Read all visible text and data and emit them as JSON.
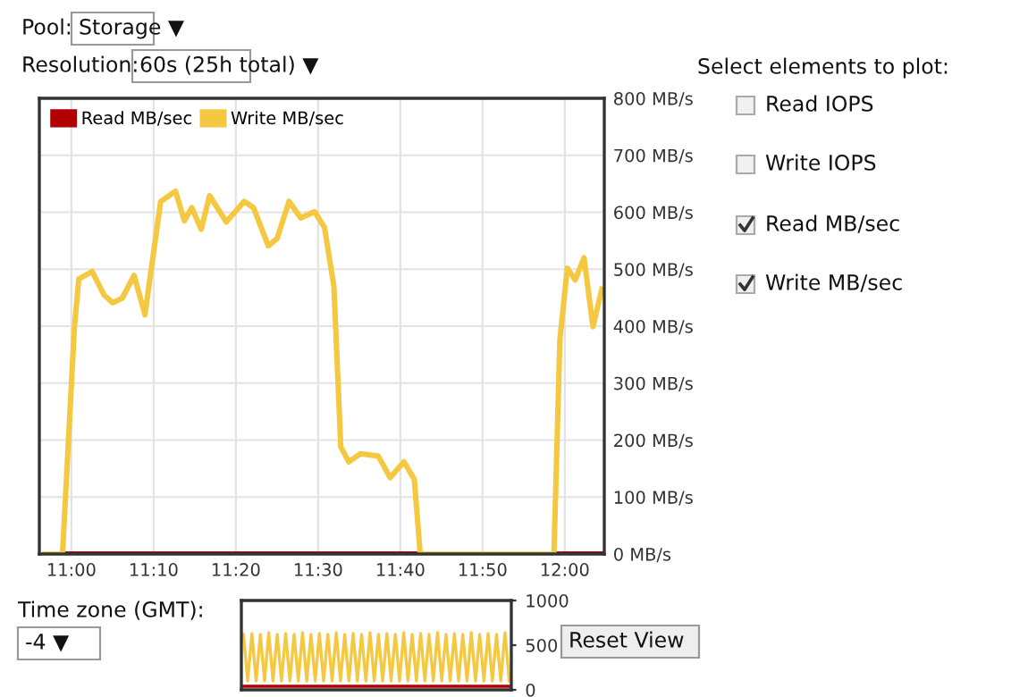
{
  "chart_data": [
    {
      "type": "line",
      "series": [
        {
          "name": "Read MB/sec",
          "color": "#b00000",
          "x": [
            10.946,
            12.075
          ],
          "values": [
            0,
            0
          ]
        },
        {
          "name": "Write MB/sec",
          "color": "#f5c842",
          "x": [
            10.946,
            10.982,
            11.006,
            11.015,
            11.042,
            11.066,
            11.084,
            11.103,
            11.127,
            11.149,
            11.181,
            11.211,
            11.229,
            11.244,
            11.263,
            11.28,
            11.314,
            11.35,
            11.369,
            11.399,
            11.417,
            11.441,
            11.465,
            11.493,
            11.513,
            11.532,
            11.546,
            11.562,
            11.586,
            11.622,
            11.646,
            11.674,
            11.695,
            11.707,
            11.978,
            11.99,
            12.005,
            12.021,
            12.039,
            12.057,
            12.075
          ],
          "values": [
            0,
            0,
            397,
            483,
            496,
            455,
            441,
            449,
            489,
            420,
            619,
            637,
            585,
            608,
            570,
            629,
            583,
            619,
            608,
            541,
            554,
            619,
            590,
            601,
            573,
            470,
            188,
            162,
            176,
            172,
            134,
            162,
            131,
            0,
            0,
            376,
            502,
            481,
            520,
            399,
            465
          ]
        }
      ],
      "xlim": [
        10.935,
        12.08
      ],
      "xticks": [
        {
          "value": 11.0,
          "label": "11:00"
        },
        {
          "value": 11.1667,
          "label": "11:10"
        },
        {
          "value": 11.3333,
          "label": "11:20"
        },
        {
          "value": 11.5,
          "label": "11:30"
        },
        {
          "value": 11.6667,
          "label": "11:40"
        },
        {
          "value": 11.8333,
          "label": "11:50"
        },
        {
          "value": 12.0,
          "label": "12:00"
        }
      ],
      "ylim": [
        0,
        800
      ],
      "yticks": [
        {
          "value": 0,
          "label": "0 MB/s"
        },
        {
          "value": 100,
          "label": "100 MB/s"
        },
        {
          "value": 200,
          "label": "200 MB/s"
        },
        {
          "value": 300,
          "label": "300 MB/s"
        },
        {
          "value": 400,
          "label": "400 MB/s"
        },
        {
          "value": 500,
          "label": "500 MB/s"
        },
        {
          "value": 600,
          "label": "600 MB/s"
        },
        {
          "value": 700,
          "label": "700 MB/s"
        },
        {
          "value": 800,
          "label": "800 MB/s"
        }
      ],
      "grid": true,
      "legend": "top left",
      "marker": "none",
      "line_style": "solid",
      "annotations": [
        "Pool:",
        "Storage ▼",
        "Resolution:",
        "60s (25h total) ▼",
        "Select elements to plot:",
        "Read IOPS",
        "Write IOPS",
        "Read MB/sec",
        "Write MB/sec",
        "Time zone (GMT):",
        "-4 ▼",
        "Reset View"
      ]
    },
    {
      "type": "line",
      "categories": [
        null,
        null,
        null,
        null,
        null,
        null,
        null,
        null,
        null,
        null,
        null,
        null,
        null,
        null,
        null,
        null,
        null,
        null,
        null,
        null,
        null,
        null,
        null,
        null,
        null,
        null,
        null,
        null,
        null,
        null,
        null,
        null,
        null,
        null,
        null,
        null,
        null,
        null,
        null,
        null,
        null,
        null,
        null,
        null,
        null,
        null,
        null,
        null,
        null,
        null,
        null,
        null,
        null,
        null,
        null,
        null,
        null,
        null,
        null,
        null,
        null,
        null,
        null,
        null
      ],
      "series": [
        {
          "color": "#f5c842",
          "values": [
            620,
            100,
            630,
            100,
            620,
            100,
            640,
            100,
            620,
            100,
            630,
            100,
            620,
            100,
            640,
            100,
            620,
            100,
            630,
            100,
            620,
            100,
            640,
            100,
            620,
            100,
            630,
            100,
            620,
            100,
            640,
            100,
            620,
            100,
            630,
            100,
            620,
            100,
            640,
            100,
            620,
            100,
            630,
            100,
            620,
            100,
            640,
            100,
            620,
            100,
            630,
            100,
            620,
            100,
            640,
            100,
            620,
            100,
            630,
            100,
            620,
            100,
            640,
            100
          ]
        },
        {
          "color": "#b00000",
          "values": [
            40,
            40,
            40,
            40,
            40,
            40,
            40,
            40,
            40,
            40,
            40,
            40,
            40,
            40,
            40,
            40,
            40,
            40,
            40,
            40,
            40,
            40,
            40,
            40,
            40,
            40,
            40,
            40,
            40,
            40,
            40,
            40,
            40,
            40,
            40,
            40,
            40,
            40,
            40,
            40,
            40,
            40,
            40,
            40,
            40,
            40,
            40,
            40,
            40,
            40,
            40,
            40,
            40,
            40,
            40,
            40,
            40,
            40,
            40,
            40,
            40,
            40,
            40,
            40
          ]
        }
      ],
      "ylim": [
        0,
        1000
      ],
      "yticks": [
        0,
        500,
        1000
      ],
      "tick_labels": "y",
      "grid": false,
      "legend": false,
      "marker": "none",
      "line_style": "solid"
    }
  ]
}
